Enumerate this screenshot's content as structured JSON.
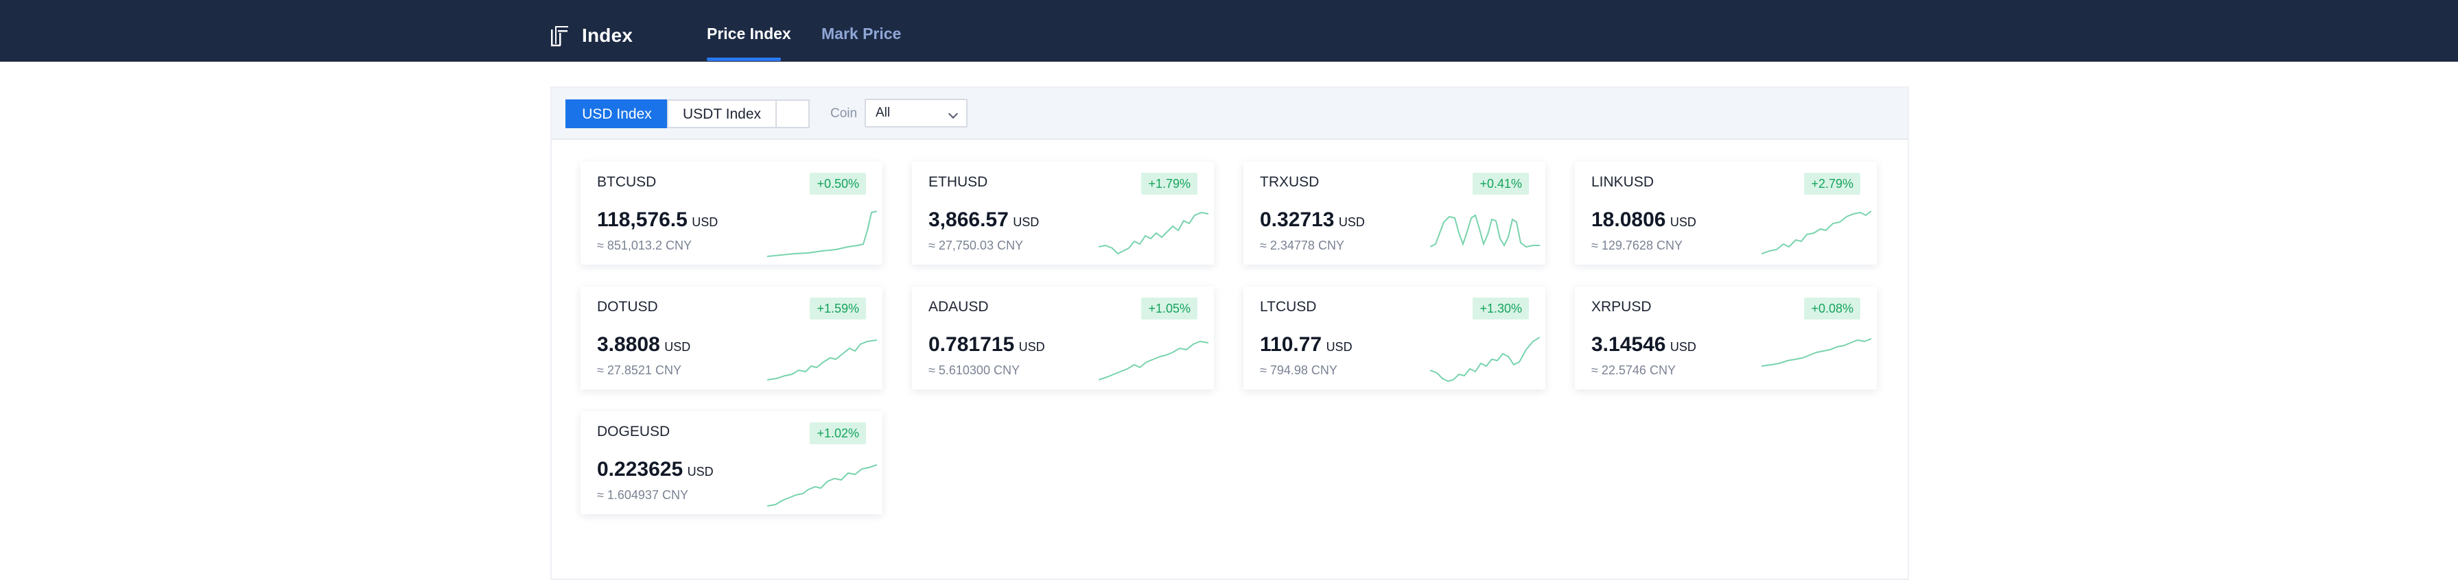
{
  "header": {
    "brand": "Index",
    "tabs": [
      {
        "label": "Price Index",
        "active": true
      },
      {
        "label": "Mark Price",
        "active": false
      }
    ]
  },
  "filters": {
    "segments": [
      {
        "label": "USD Index",
        "selected": true
      },
      {
        "label": "USDT Index",
        "selected": false
      },
      {
        "label": "",
        "selected": false
      }
    ],
    "coin_label": "Coin",
    "coin_value": "All"
  },
  "colors": {
    "accent": "#1a73e8",
    "header_bg": "#1d2a44",
    "positive": "#14a35c",
    "positive_bg": "#d9f4e6",
    "sparkline": "#78d3ad"
  },
  "cards": [
    {
      "symbol": "BTCUSD",
      "change": "+0.50%",
      "price": "118,576.5",
      "unit": "USD",
      "cny": "≈ 851,013.2 CNY"
    },
    {
      "symbol": "ETHUSD",
      "change": "+1.79%",
      "price": "3,866.57",
      "unit": "USD",
      "cny": "≈ 27,750.03 CNY"
    },
    {
      "symbol": "TRXUSD",
      "change": "+0.41%",
      "price": "0.32713",
      "unit": "USD",
      "cny": "≈ 2.34778 CNY"
    },
    {
      "symbol": "LINKUSD",
      "change": "+2.79%",
      "price": "18.0806",
      "unit": "USD",
      "cny": "≈ 129.7628 CNY"
    },
    {
      "symbol": "DOTUSD",
      "change": "+1.59%",
      "price": "3.8808",
      "unit": "USD",
      "cny": "≈ 27.8521 CNY"
    },
    {
      "symbol": "ADAUSD",
      "change": "+1.05%",
      "price": "0.781715",
      "unit": "USD",
      "cny": "≈ 5.610300 CNY"
    },
    {
      "symbol": "LTCUSD",
      "change": "+1.30%",
      "price": "110.77",
      "unit": "USD",
      "cny": "≈ 794.98 CNY"
    },
    {
      "symbol": "XRPUSD",
      "change": "+0.08%",
      "price": "3.14546",
      "unit": "USD",
      "cny": "≈ 22.5746 CNY"
    },
    {
      "symbol": "DOGEUSD",
      "change": "+1.02%",
      "price": "0.223625",
      "unit": "USD",
      "cny": "≈ 1.604937 CNY"
    }
  ]
}
